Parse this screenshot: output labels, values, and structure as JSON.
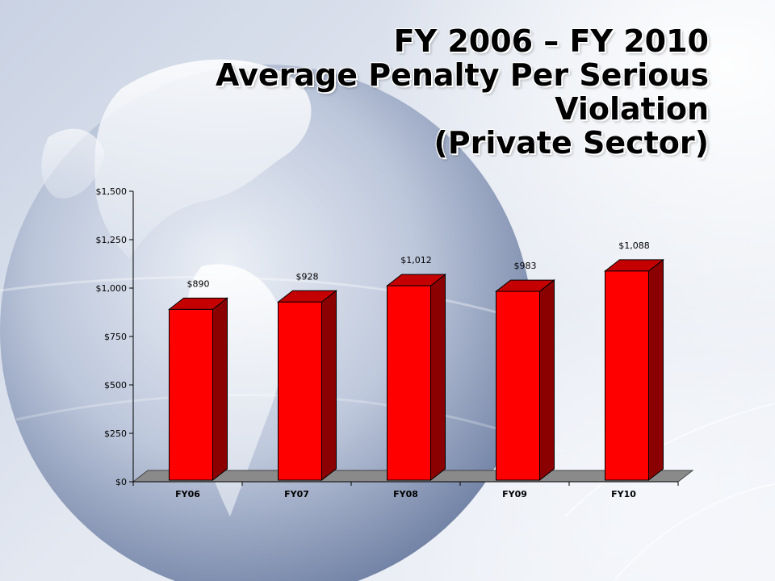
{
  "title": {
    "line1": "FY 2006 – FY 2010",
    "line2": "Average Penalty Per Serious",
    "line3": "Violation",
    "line4": "(Private Sector)"
  },
  "colors": {
    "bar_front": "#ff0000",
    "bar_side": "#8b0000",
    "bar_top": "#c40000",
    "floor": "#8a8a8a"
  },
  "chart_data": {
    "type": "bar",
    "title": "FY 2006 – FY 2010 Average Penalty Per Serious Violation (Private Sector)",
    "categories": [
      "FY06",
      "FY07",
      "FY08",
      "FY09",
      "FY10"
    ],
    "values": [
      890,
      928,
      1012,
      983,
      1088
    ],
    "value_labels": [
      "$890",
      "$928",
      "$1,012",
      "$983",
      "$1,088"
    ],
    "y_ticks": [
      0,
      250,
      500,
      750,
      1000,
      1250,
      1500
    ],
    "y_tick_labels": [
      "$0",
      "$250",
      "$500",
      "$750",
      "$1,000",
      "$1,250",
      "$1,500"
    ],
    "ylim": [
      0,
      1500
    ],
    "xlabel": "",
    "ylabel": "",
    "grid": false,
    "legend": "none",
    "style": "3d"
  }
}
